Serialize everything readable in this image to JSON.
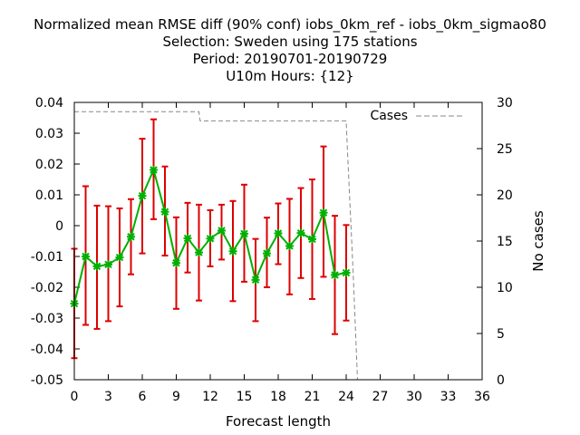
{
  "chart_data": {
    "type": "line",
    "title_lines": [
      "Normalized mean RMSE diff (90% conf) iobs_0km_ref - iobs_0km_sigmao80",
      "Selection: Sweden using   175 stations",
      "Period: 20190701-20190729",
      "U10m   Hours: {12}"
    ],
    "xlabel": "Forecast length",
    "ylabel": "",
    "y2label": "No cases",
    "xlim": [
      0,
      36
    ],
    "ylim": [
      -0.05,
      0.04
    ],
    "y2lim": [
      0,
      30
    ],
    "xticks": [
      "0",
      "3",
      "6",
      "9",
      "12",
      "15",
      "18",
      "21",
      "24",
      "27",
      "30",
      "33",
      "36"
    ],
    "yticks": [
      "0.04",
      "0.03",
      "0.02",
      "0.01",
      "0",
      "-0.01",
      "-0.02",
      "-0.03",
      "-0.04",
      "-0.05"
    ],
    "y2ticks": [
      "30",
      "25",
      "20",
      "15",
      "10",
      "5",
      "0"
    ],
    "grid": false,
    "legend": "top-right",
    "colors": {
      "line": "#00b000",
      "error": "#dd0000",
      "cases": "#888888"
    },
    "series": [
      {
        "name": "",
        "x": [
          0,
          1,
          2,
          3,
          4,
          5,
          6,
          7,
          8,
          9,
          10,
          11,
          12,
          13,
          14,
          15,
          16,
          17,
          18,
          19,
          20,
          21,
          22,
          23,
          24
        ],
        "y": [
          -0.0253,
          -0.01,
          -0.0132,
          -0.0126,
          -0.0103,
          -0.0036,
          0.0097,
          0.0181,
          0.0045,
          -0.0121,
          -0.0041,
          -0.0087,
          -0.0042,
          -0.0016,
          -0.0083,
          -0.0026,
          -0.0176,
          -0.009,
          -0.0025,
          -0.0066,
          -0.0024,
          -0.0044,
          0.0042,
          -0.016,
          -0.0153
        ],
        "ylow": [
          -0.043,
          -0.0322,
          -0.0335,
          -0.031,
          -0.0262,
          -0.0158,
          -0.009,
          0.0021,
          -0.0097,
          -0.027,
          -0.0152,
          -0.0243,
          -0.0132,
          -0.011,
          -0.0245,
          -0.0182,
          -0.031,
          -0.02,
          -0.0125,
          -0.0223,
          -0.017,
          -0.0238,
          -0.0166,
          -0.0352,
          -0.0308
        ],
        "yhigh": [
          -0.0075,
          0.0128,
          0.0065,
          0.0063,
          0.0056,
          0.0086,
          0.0282,
          0.0345,
          0.0192,
          0.0027,
          0.0074,
          0.0068,
          0.005,
          0.0068,
          0.008,
          0.0133,
          -0.0043,
          0.0026,
          0.0072,
          0.0087,
          0.0122,
          0.015,
          0.0257,
          0.0032,
          0.0002
        ]
      },
      {
        "name": "Cases",
        "axis": "y2",
        "x": [
          0,
          1,
          2,
          3,
          4,
          5,
          6,
          7,
          8,
          9,
          10,
          11,
          11.1,
          12,
          13,
          14,
          15,
          16,
          17,
          18,
          19,
          20,
          21,
          22,
          23,
          24,
          24.1,
          24.6,
          25,
          26,
          27,
          28,
          29,
          30,
          31,
          32,
          33,
          34,
          35,
          36
        ],
        "y": [
          29,
          29,
          29,
          29,
          29,
          29,
          29,
          29,
          29,
          29,
          29,
          29,
          28,
          28,
          28,
          28,
          28,
          28,
          28,
          28,
          28,
          28,
          28,
          28,
          28,
          28,
          25,
          12,
          0,
          0,
          0,
          0,
          0,
          0,
          0,
          0,
          0,
          0,
          0,
          0
        ]
      }
    ]
  }
}
